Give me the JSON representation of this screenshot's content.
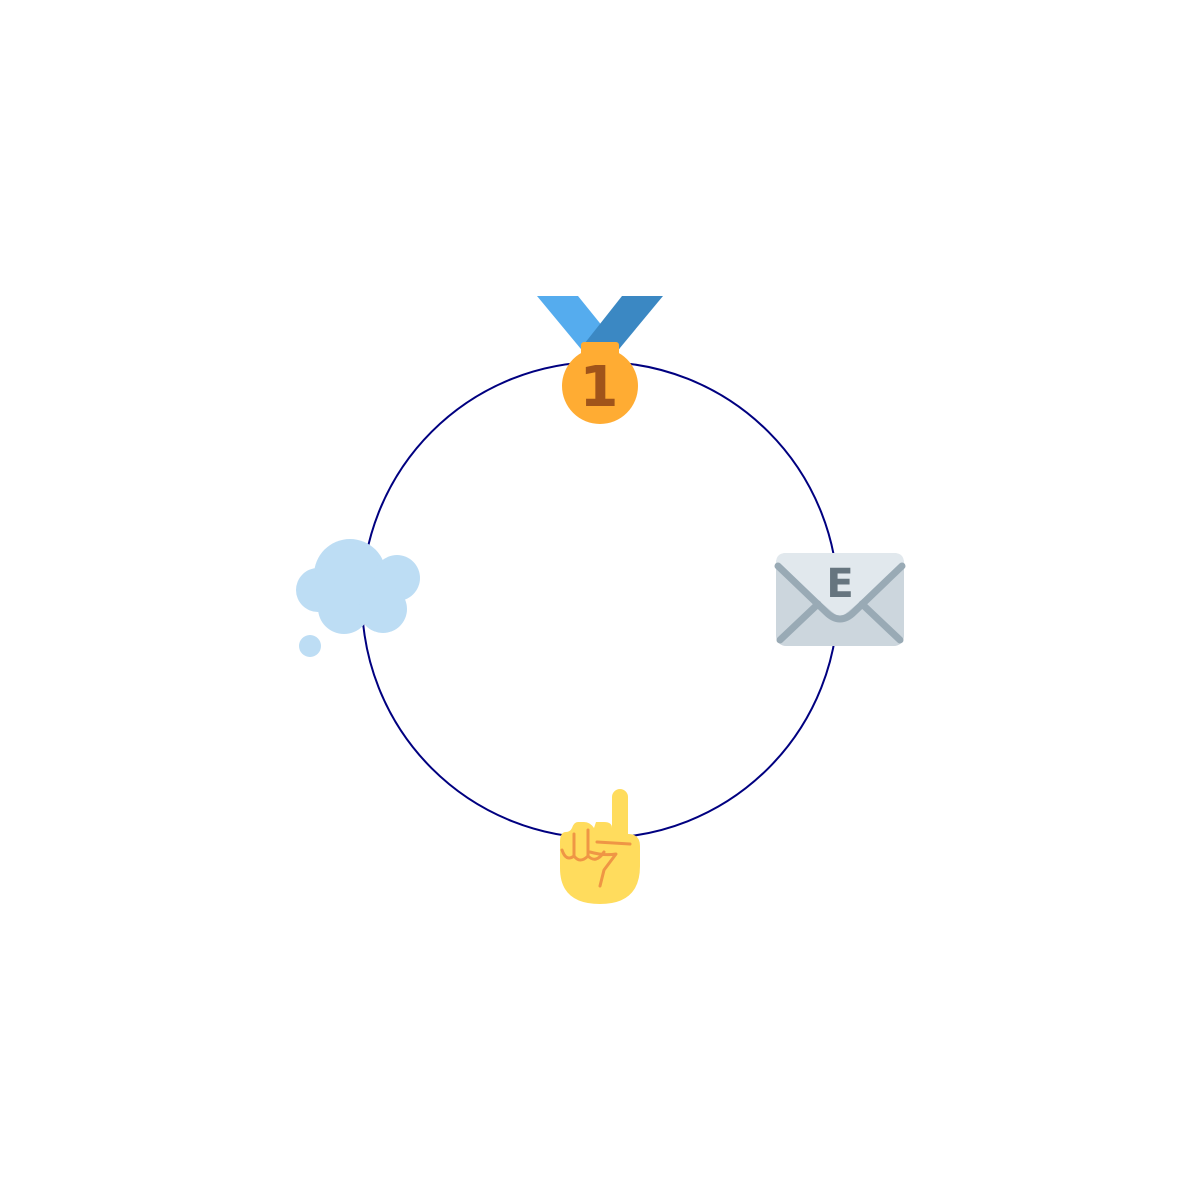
{
  "diagram": {
    "type": "cycle",
    "ring_color": "#000080",
    "nodes": [
      {
        "icon": "first-place-medal-icon",
        "glyph": "1"
      },
      {
        "icon": "e-mail-envelope-icon",
        "glyph": "E"
      },
      {
        "icon": "index-pointing-up-icon"
      },
      {
        "icon": "thought-balloon-icon"
      }
    ]
  },
  "colors": {
    "ribbon_light": "#55ACEE",
    "ribbon_dark": "#3B88C3",
    "medal": "#FFAC33",
    "medal_number": "#A0541A",
    "envelope_back": "#E1E8ED",
    "envelope_front": "#CCD6DD",
    "envelope_lines": "#99AAB5",
    "envelope_letter": "#66757F",
    "hand": "#FFDC5D",
    "hand_lines": "#EF9645",
    "cloud": "#BDDDF4"
  }
}
